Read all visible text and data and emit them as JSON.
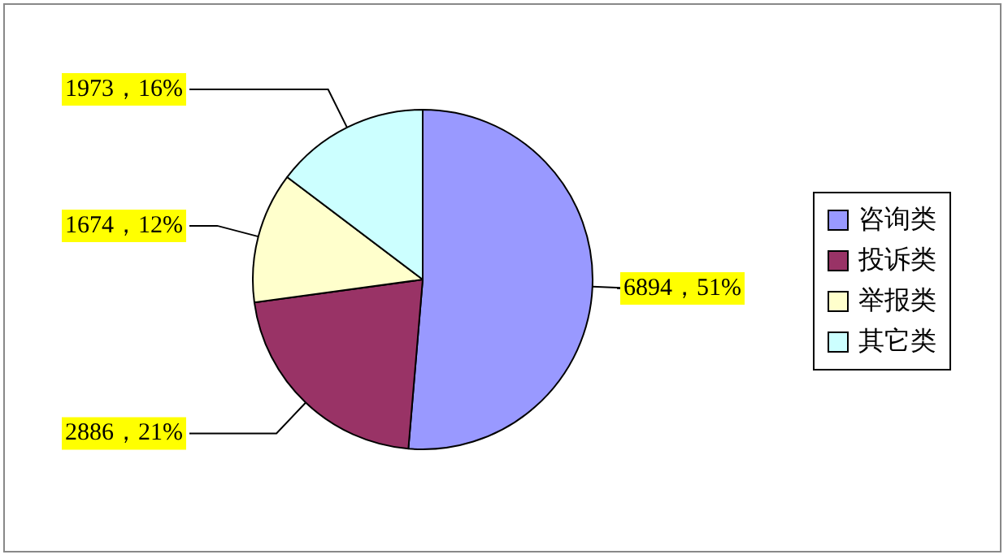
{
  "chart_data": {
    "type": "pie",
    "categories": [
      "咨询类",
      "投诉类",
      "举报类",
      "其它类"
    ],
    "values": [
      6894,
      2886,
      1674,
      1973
    ],
    "colors": [
      "#9999ff",
      "#993366",
      "#ffffcc",
      "#ccffff"
    ],
    "value_labels": [
      "6894，51%",
      "2886，21%",
      "1674，12%",
      "1973，16%"
    ],
    "legend": "right"
  }
}
